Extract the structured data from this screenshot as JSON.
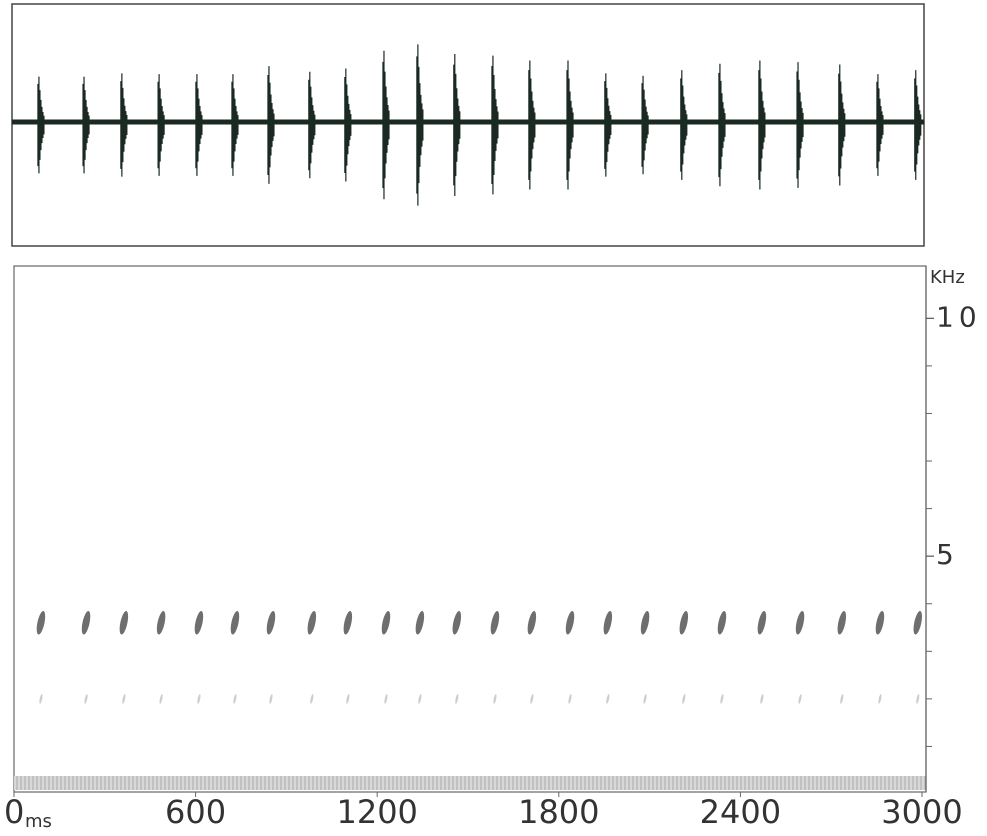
{
  "chart_data": [
    {
      "type": "oscillogram",
      "x": [
        89,
        238,
        363,
        486,
        611,
        730,
        849,
        984,
        1103,
        1229,
        1341,
        1463,
        1589,
        1711,
        1837,
        1962,
        2085,
        2213,
        2339,
        2471,
        2597,
        2735,
        2861,
        2986
      ],
      "values": [
        0.6,
        0.6,
        0.64,
        0.63,
        0.63,
        0.63,
        0.73,
        0.66,
        0.7,
        0.92,
        1.0,
        0.88,
        0.86,
        0.8,
        0.8,
        0.64,
        0.61,
        0.68,
        0.76,
        0.8,
        0.78,
        0.75,
        0.63,
        0.68
      ],
      "color": "#1a2a22",
      "xlim": [
        0,
        3000
      ],
      "ylim": [
        -1.5,
        1.5
      ]
    },
    {
      "type": "spectrogram",
      "x": [
        89,
        238,
        363,
        486,
        611,
        730,
        849,
        984,
        1103,
        1229,
        1341,
        1463,
        1589,
        1711,
        1837,
        1962,
        2085,
        2213,
        2339,
        2471,
        2597,
        2735,
        2861,
        2986
      ],
      "series": [
        {
          "color": "#555555",
          "values": [
            3.6,
            3.6,
            3.6,
            3.6,
            3.6,
            3.6,
            3.6,
            3.6,
            3.6,
            3.6,
            3.6,
            3.6,
            3.6,
            3.6,
            3.6,
            3.6,
            3.6,
            3.6,
            3.6,
            3.6,
            3.6,
            3.6,
            3.6,
            3.6
          ]
        },
        {
          "color": "#c8c8c8",
          "values": [
            2.0,
            2.0,
            2.0,
            2.0,
            2.0,
            2.0,
            2.0,
            2.0,
            2.0,
            2.0,
            2.0,
            2.0,
            2.0,
            2.0,
            2.0,
            2.0,
            2.0,
            2.0,
            2.0,
            2.0,
            2.0,
            2.0,
            2.0,
            2.0
          ]
        }
      ],
      "xlim": [
        0,
        3000
      ],
      "xticks": [
        0,
        600,
        1200,
        1800,
        2400,
        3000
      ],
      "x_unit": "ms",
      "ylim": [
        0,
        11.1
      ],
      "yticks": [
        5,
        10
      ],
      "yminor_ticks": [
        1,
        2,
        3,
        4,
        6,
        7,
        8,
        9
      ],
      "y_unit": "KHz"
    }
  ]
}
